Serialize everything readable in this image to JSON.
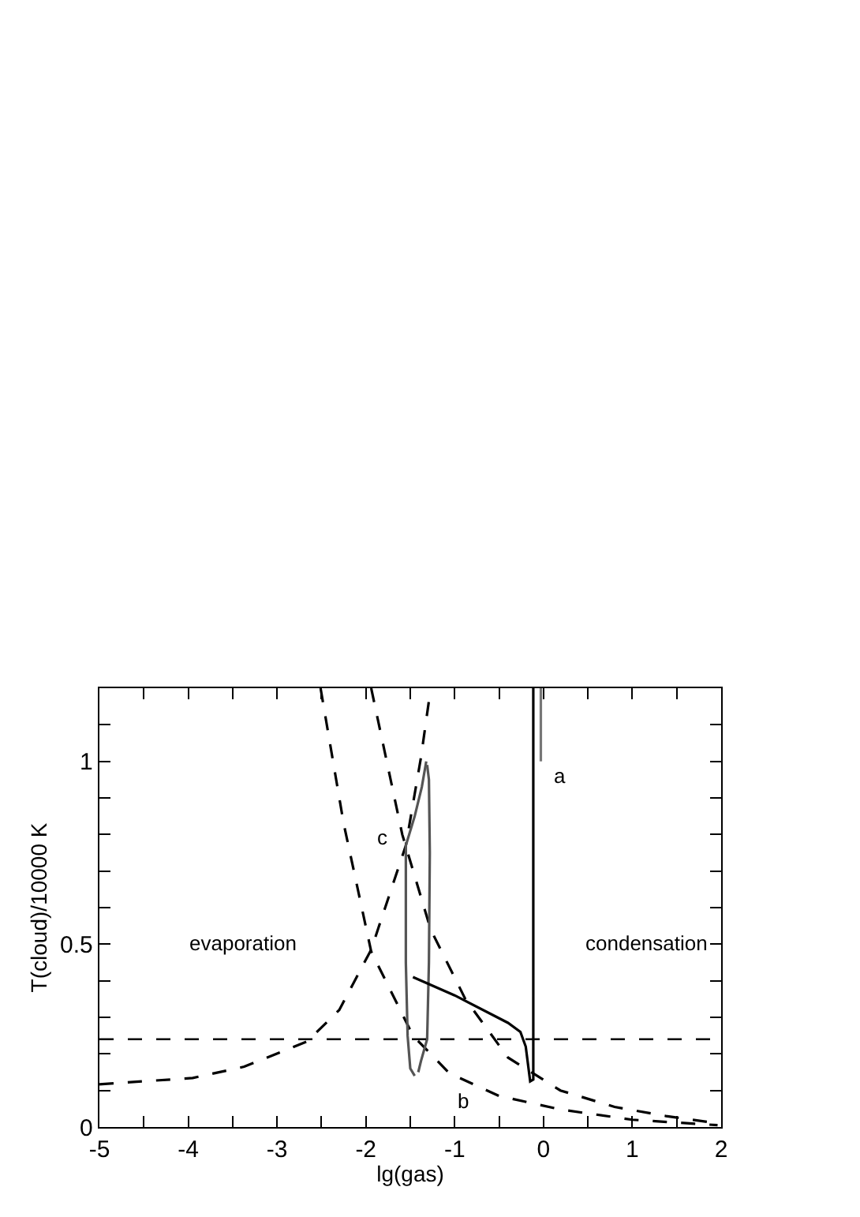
{
  "chart_data": {
    "type": "line",
    "xlabel": "lg(gas)",
    "ylabel": "T(cloud)/10000 K",
    "xlim": [
      -5,
      2
    ],
    "ylim": [
      0,
      1.2
    ],
    "xticks": [
      -5,
      {
        "value": -4.5,
        "label": null
      },
      -4,
      {
        "value": -3.5,
        "label": null
      },
      -3,
      {
        "value": -2.5,
        "label": null
      },
      -2,
      {
        "value": -1.5,
        "label": null
      },
      -1,
      {
        "value": -0.5,
        "label": null
      },
      0,
      {
        "value": 0.5,
        "label": null
      },
      1,
      {
        "value": 1.5,
        "label": null
      },
      2
    ],
    "yticks": [
      0,
      {
        "value": 0.1,
        "label": null
      },
      {
        "value": 0.2,
        "label": null
      },
      {
        "value": 0.3,
        "label": null
      },
      {
        "value": 0.4,
        "label": null
      },
      0.5,
      {
        "value": 0.6,
        "label": null
      },
      {
        "value": 0.7,
        "label": null
      },
      {
        "value": 0.8,
        "label": null
      },
      {
        "value": 0.9,
        "label": null
      },
      1,
      {
        "value": 1.1,
        "label": null
      }
    ],
    "marker": "none",
    "series": [
      {
        "color": "#000000",
        "line_style": "dashed",
        "x": [
          -5,
          -3.95,
          -3.37,
          -2.66,
          -2.3,
          -1.94,
          -1.55,
          -1.38,
          -1.27
        ],
        "values": [
          0.117,
          0.134,
          0.165,
          0.234,
          0.32,
          0.485,
          0.77,
          1.01,
          1.2
        ]
      },
      {
        "color": "#000000",
        "line_style": "dashed",
        "x": [
          -2.51,
          -2.25,
          -1.94,
          -1.47,
          -1.06,
          -0.5,
          0.19,
          1.0,
          1.96
        ],
        "values": [
          1.2,
          0.83,
          0.48,
          0.25,
          0.147,
          0.085,
          0.048,
          0.02,
          0.005
        ]
      },
      {
        "color": "#000000",
        "line_style": "dashed",
        "x": [
          -1.94,
          -1.59,
          -1.27,
          -0.88,
          -0.4,
          0.19,
          0.8,
          1.38,
          1.96
        ],
        "values": [
          1.2,
          0.8,
          0.54,
          0.35,
          0.19,
          0.1,
          0.055,
          0.03,
          0.01
        ]
      },
      {
        "color": "#555555",
        "line_style": "solid",
        "x": [
          -1.32,
          -1.37,
          -1.45,
          -1.55,
          -1.55,
          -1.53,
          -1.5,
          -1.45
        ],
        "values": [
          1.0,
          0.93,
          0.85,
          0.77,
          0.45,
          0.25,
          0.16,
          0.14
        ]
      },
      {
        "color": "#555555",
        "line_style": "solid",
        "x": [
          -1.41,
          -1.38,
          -1.31,
          -1.29,
          -1.28,
          -1.29,
          -1.31
        ],
        "values": [
          0.15,
          0.18,
          0.24,
          0.45,
          0.75,
          0.95,
          0.99
        ]
      },
      {
        "color": "#000000",
        "line_style": "solid",
        "x": [
          -0.115,
          -0.115,
          -0.15,
          -0.2,
          -0.26,
          -0.4,
          -1.0,
          -1.47
        ],
        "values": [
          1.2,
          0.13,
          0.125,
          0.22,
          0.26,
          0.285,
          0.36,
          0.41
        ]
      },
      {
        "color": "#777777",
        "line_style": "solid",
        "x": [
          -0.03,
          -0.03
        ],
        "values": [
          1.2,
          1.0
        ]
      }
    ],
    "ref_lines": [
      {
        "axis": "y",
        "value": 0.24,
        "color": "#000000",
        "line_style": "dashed"
      }
    ],
    "annotations": [
      "evaporation",
      "condensation",
      "a",
      "b",
      "c"
    ]
  }
}
